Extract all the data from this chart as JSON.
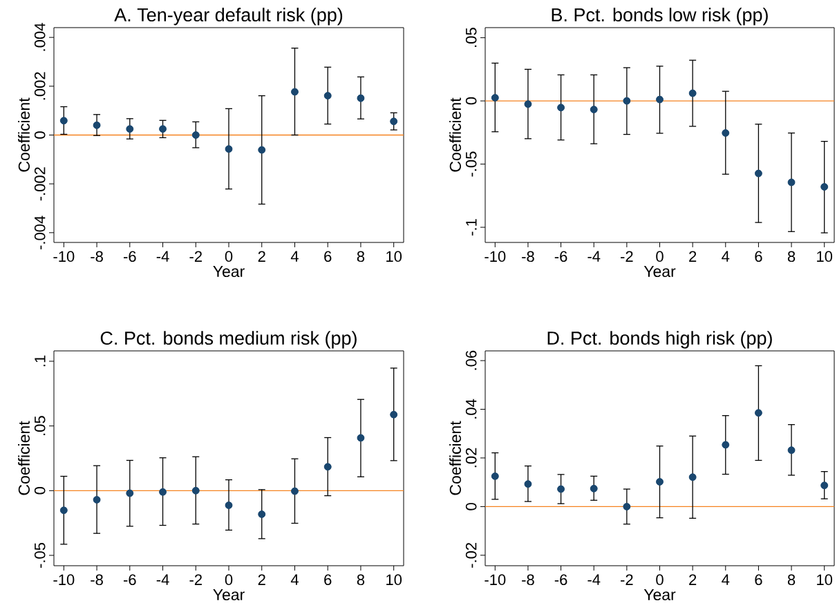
{
  "chart_data": [
    {
      "type": "scatter",
      "title": "A. Ten-year default risk (pp)",
      "xlabel": "Year",
      "ylabel": "Coefficient",
      "color": "#1a476f",
      "x": [
        -10,
        -8,
        -6,
        -4,
        -2,
        0,
        2,
        4,
        6,
        8,
        10
      ],
      "values": [
        0.00059,
        0.0004,
        0.00025,
        0.00025,
        0,
        -0.00057,
        -0.00061,
        0.00177,
        0.00161,
        0.00151,
        0.00056
      ],
      "errors": [
        [
          3e-05,
          0.00116
        ],
        [
          -2e-05,
          0.00084
        ],
        [
          -0.00016,
          0.00067
        ],
        [
          -0.00011,
          0.0006
        ],
        [
          -0.00052,
          0.00054
        ],
        [
          -0.00221,
          0.00108
        ],
        [
          -0.00283,
          0.00161
        ],
        [
          0,
          0.00356
        ],
        [
          0.00045,
          0.00278
        ],
        [
          0.00066,
          0.00238
        ],
        [
          0.00021,
          0.00091
        ]
      ],
      "ref_lines": [
        {
          "axis": "y",
          "value": 0,
          "color": "#f5821f"
        }
      ],
      "xlim": [
        -10.6,
        10.6
      ],
      "ylim": [
        -0.0044,
        0.0044
      ],
      "xticks": [
        -10,
        -8,
        -6,
        -4,
        -2,
        0,
        2,
        4,
        6,
        8,
        10
      ],
      "yticks": [
        {
          "value": -0.004,
          "label": "-.004"
        },
        {
          "value": -0.002,
          "label": "-.002"
        },
        0,
        {
          "value": 0.002,
          "label": ".002"
        },
        {
          "value": 0.004,
          "label": ".004"
        }
      ]
    },
    {
      "type": "scatter",
      "title": "B. Pct. bonds low risk (pp)",
      "xlabel": "Year",
      "ylabel": "Coefficient",
      "color": "#1a476f",
      "x": [
        -10,
        -8,
        -6,
        -4,
        -2,
        0,
        2,
        4,
        6,
        8,
        10
      ],
      "values": [
        0.0025,
        -0.0025,
        -0.0053,
        -0.0068,
        0,
        0.0011,
        0.0061,
        -0.0254,
        -0.0574,
        -0.0644,
        -0.068
      ],
      "errors": [
        [
          -0.0244,
          0.0299
        ],
        [
          -0.0299,
          0.025
        ],
        [
          -0.0309,
          0.0206
        ],
        [
          -0.0339,
          0.0206
        ],
        [
          -0.0265,
          0.0263
        ],
        [
          -0.0256,
          0.0275
        ],
        [
          -0.0201,
          0.0322
        ],
        [
          -0.058,
          0.0076
        ],
        [
          -0.0962,
          -0.0184
        ],
        [
          -0.1034,
          -0.0254
        ],
        [
          -0.1044,
          -0.032
        ]
      ],
      "ref_lines": [
        {
          "axis": "y",
          "value": 0,
          "color": "#f5821f"
        }
      ],
      "xlim": [
        -10.6,
        10.6
      ],
      "ylim": [
        -0.112,
        0.058
      ],
      "xticks": [
        -10,
        -8,
        -6,
        -4,
        -2,
        0,
        2,
        4,
        6,
        8,
        10
      ],
      "yticks": [
        {
          "value": -0.1,
          "label": "-.1"
        },
        {
          "value": -0.05,
          "label": "-.05"
        },
        0,
        {
          "value": 0.05,
          "label": ".05"
        }
      ]
    },
    {
      "type": "scatter",
      "title": "C. Pct. bonds medium risk (pp)",
      "xlabel": "Year",
      "ylabel": "Coefficient",
      "color": "#1a476f",
      "x": [
        -10,
        -8,
        -6,
        -4,
        -2,
        0,
        2,
        4,
        6,
        8,
        10
      ],
      "values": [
        -0.0152,
        -0.007,
        -0.002,
        -0.001,
        0,
        -0.0113,
        -0.0182,
        -0.0004,
        0.0184,
        0.0408,
        0.0588
      ],
      "errors": [
        [
          -0.0414,
          0.0111
        ],
        [
          -0.033,
          0.0193
        ],
        [
          -0.0275,
          0.0234
        ],
        [
          -0.0268,
          0.0254
        ],
        [
          -0.0258,
          0.0262
        ],
        [
          -0.0305,
          0.0084
        ],
        [
          -0.0371,
          0.0008
        ],
        [
          -0.0252,
          0.0246
        ],
        [
          -0.0039,
          0.041
        ],
        [
          0.0107,
          0.0705
        ],
        [
          0.0232,
          0.0947
        ]
      ],
      "ref_lines": [
        {
          "axis": "y",
          "value": 0,
          "color": "#f5821f"
        }
      ],
      "xlim": [
        -10.6,
        10.6
      ],
      "ylim": [
        -0.058,
        0.108
      ],
      "xticks": [
        -10,
        -8,
        -6,
        -4,
        -2,
        0,
        2,
        4,
        6,
        8,
        10
      ],
      "yticks": [
        {
          "value": -0.05,
          "label": "-.05"
        },
        0,
        {
          "value": 0.05,
          "label": ".05"
        },
        {
          "value": 0.1,
          "label": ".1"
        }
      ]
    },
    {
      "type": "scatter",
      "title": "D. Pct. bonds high risk (pp)",
      "xlabel": "Year",
      "ylabel": "Coefficient",
      "color": "#1a476f",
      "x": [
        -10,
        -8,
        -6,
        -4,
        -2,
        0,
        2,
        4,
        6,
        8,
        10
      ],
      "values": [
        0.0125,
        0.0093,
        0.0072,
        0.0074,
        0,
        0.0102,
        0.0121,
        0.0254,
        0.0385,
        0.0232,
        0.0087
      ],
      "errors": [
        [
          0.003,
          0.0221
        ],
        [
          0.0021,
          0.0167
        ],
        [
          0.0012,
          0.0132
        ],
        [
          0.0026,
          0.0125
        ],
        [
          -0.0072,
          0.0072
        ],
        [
          -0.0046,
          0.0249
        ],
        [
          -0.0048,
          0.029
        ],
        [
          0.0133,
          0.0374
        ],
        [
          0.019,
          0.0579
        ],
        [
          0.0129,
          0.0337
        ],
        [
          0.0032,
          0.0144
        ]
      ],
      "ref_lines": [
        {
          "axis": "y",
          "value": 0,
          "color": "#f5821f"
        }
      ],
      "xlim": [
        -10.6,
        10.6
      ],
      "ylim": [
        -0.0243,
        0.064
      ],
      "xticks": [
        -10,
        -8,
        -6,
        -4,
        -2,
        0,
        2,
        4,
        6,
        8,
        10
      ],
      "yticks": [
        {
          "value": -0.02,
          "label": "-.02"
        },
        0,
        {
          "value": 0.02,
          "label": ".02"
        },
        {
          "value": 0.04,
          "label": ".04"
        },
        {
          "value": 0.06,
          "label": ".06"
        }
      ]
    }
  ]
}
